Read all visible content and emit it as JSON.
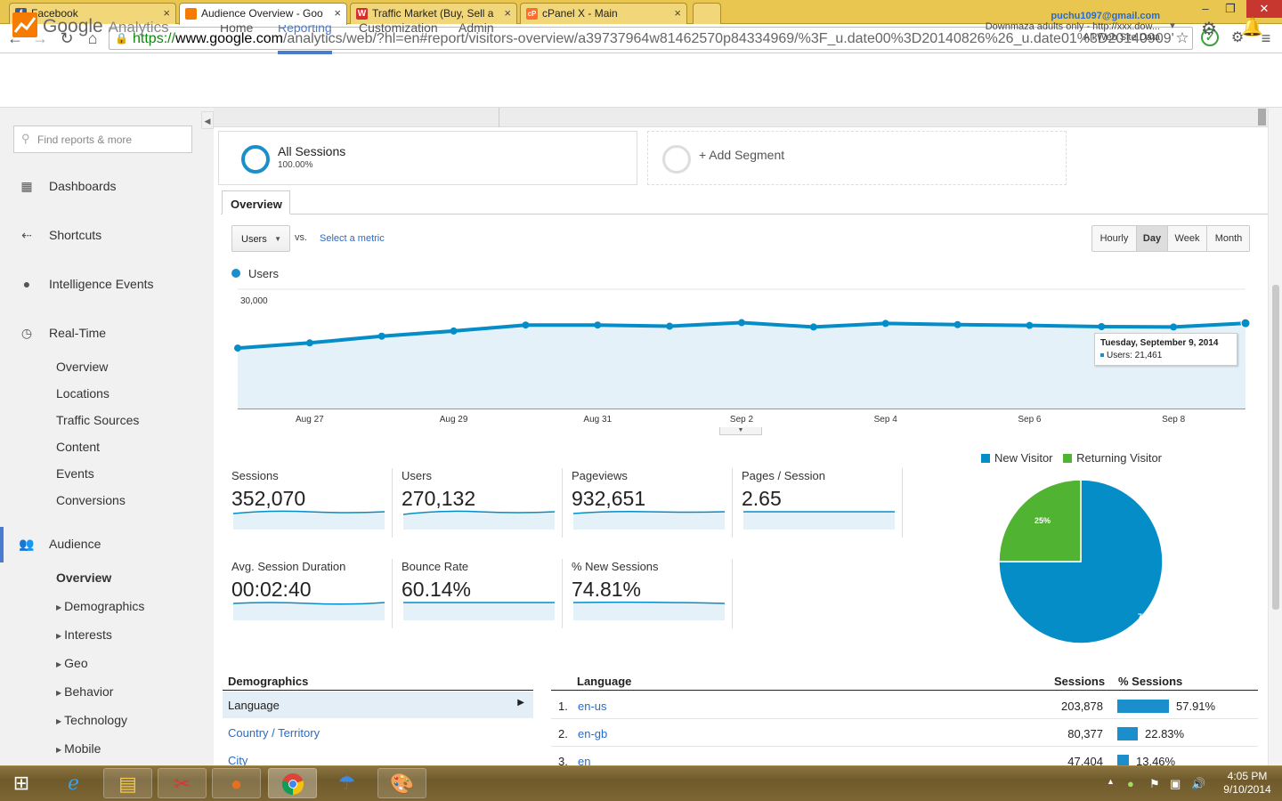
{
  "browser": {
    "tabs": [
      {
        "title": "Facebook",
        "icon": "facebook-icon",
        "color": "#3b5998",
        "glyph": "f",
        "active": false
      },
      {
        "title": "Audience Overview - Goo",
        "icon": "google-analytics-icon",
        "color": "#f57c00",
        "glyph": "",
        "active": true
      },
      {
        "title": "Traffic Market (Buy, Sell a",
        "icon": "traffic-market-icon",
        "color": "#d32f2f",
        "glyph": "W",
        "active": false
      },
      {
        "title": "cPanel X - Main",
        "icon": "cpanel-icon",
        "color": "#ff6c2c",
        "glyph": "cP",
        "active": false
      }
    ],
    "url": {
      "scheme": "https://",
      "domain": "www.google.com",
      "path": "/analytics/web/?hl=en#report/visitors-overview/a39737964w81462570p84334969/%3F_u.date00%3D20140826%26_u.date01%3D20140909'"
    }
  },
  "ga": {
    "brand_google": "Google",
    "brand_product": "Analytics",
    "nav": [
      "Home",
      "Reporting",
      "Customization",
      "Admin"
    ],
    "active_nav": "Reporting",
    "account": {
      "email": "puchu1097@gmail.com",
      "property": "Downmaza adults only - http://xxx.dow...",
      "view": "All Web Site Data"
    }
  },
  "sidebar": {
    "search_placeholder": "Find reports & more",
    "sections": [
      {
        "label": "Dashboards",
        "icon": "dashboard-grid-icon"
      },
      {
        "label": "Shortcuts",
        "icon": "shortcut-arrow-icon"
      },
      {
        "label": "Intelligence Events",
        "icon": "lightbulb-icon"
      },
      {
        "label": "Real-Time",
        "icon": "clock-icon"
      }
    ],
    "realtime_items": [
      "Overview",
      "Locations",
      "Traffic Sources",
      "Content",
      "Events",
      "Conversions"
    ],
    "audience_label": "Audience",
    "audience_icon": "people-icon",
    "audience_items": [
      "Overview",
      "Demographics",
      "Interests",
      "Geo",
      "Behavior",
      "Technology",
      "Mobile"
    ]
  },
  "segments": {
    "primary_name": "All Sessions",
    "primary_pct": "100.00%",
    "add_label": "+ Add Segment"
  },
  "report": {
    "tab": "Overview",
    "metric_select": "Users",
    "vs": "vs.",
    "select_metric": "Select a metric",
    "granularity": [
      "Hourly",
      "Day",
      "Week",
      "Month"
    ],
    "granularity_selected": "Day",
    "legend": "Users",
    "tooltip_date": "Tuesday, September 9, 2014",
    "tooltip_value": "Users: 21,461"
  },
  "chart_data": {
    "type": "area",
    "series": [
      {
        "name": "Users",
        "color": "#1a8fcb",
        "values": [
          15200,
          16500,
          18200,
          19500,
          21000,
          21000,
          20700,
          21600,
          20500,
          21400,
          21100,
          20900,
          20600,
          20500,
          21461
        ]
      }
    ],
    "x": [
      "Aug 26",
      "Aug 27",
      "Aug 28",
      "Aug 29",
      "Aug 30",
      "Aug 31",
      "Sep 1",
      "Sep 2",
      "Sep 3",
      "Sep 4",
      "Sep 5",
      "Sep 6",
      "Sep 7",
      "Sep 8",
      "Sep 9"
    ],
    "x_tick_labels": [
      "Aug 27",
      "Aug 29",
      "Aug 31",
      "Sep 2",
      "Sep 4",
      "Sep 6",
      "Sep 8"
    ],
    "y_tick_labels": [
      "30,000",
      "15,000"
    ],
    "y_ticks": [
      30000,
      15000
    ],
    "ylim": [
      0,
      30000
    ]
  },
  "metrics": [
    {
      "label": "Sessions",
      "value": "352,070"
    },
    {
      "label": "Users",
      "value": "270,132"
    },
    {
      "label": "Pageviews",
      "value": "932,651"
    },
    {
      "label": "Pages / Session",
      "value": "2.65"
    },
    {
      "label": "Avg. Session Duration",
      "value": "00:02:40"
    },
    {
      "label": "Bounce Rate",
      "value": "60.14%"
    },
    {
      "label": "% New Sessions",
      "value": "74.81%"
    }
  ],
  "pie": {
    "type": "pie",
    "slices": [
      {
        "name": "New Visitor",
        "value": 75,
        "label": "75%",
        "color": "#058dc7"
      },
      {
        "name": "Returning Visitor",
        "value": 25,
        "label": "25%",
        "color": "#50b432"
      }
    ]
  },
  "demographics": {
    "title": "Demographics",
    "selected": "Language",
    "links": [
      "Country / Territory",
      "City"
    ]
  },
  "language_table": {
    "headers": [
      "Language",
      "Sessions",
      "% Sessions"
    ],
    "rows": [
      {
        "n": "1.",
        "lang": "en-us",
        "sessions": "203,878",
        "pct": "57.91%",
        "frac": 0.5791
      },
      {
        "n": "2.",
        "lang": "en-gb",
        "sessions": "80,377",
        "pct": "22.83%",
        "frac": 0.2283
      },
      {
        "n": "3.",
        "lang": "en",
        "sessions": "47,404",
        "pct": "13.46%",
        "frac": 0.1346
      }
    ]
  },
  "taskbar": {
    "time": "4:05 PM",
    "date": "9/10/2014",
    "apps": [
      "start-button",
      "internet-explorer-icon",
      "file-explorer-icon",
      "snipping-tool-icon",
      "firefox-icon",
      "chrome-icon",
      "weather-umbrella-icon",
      "paint-icon"
    ]
  }
}
